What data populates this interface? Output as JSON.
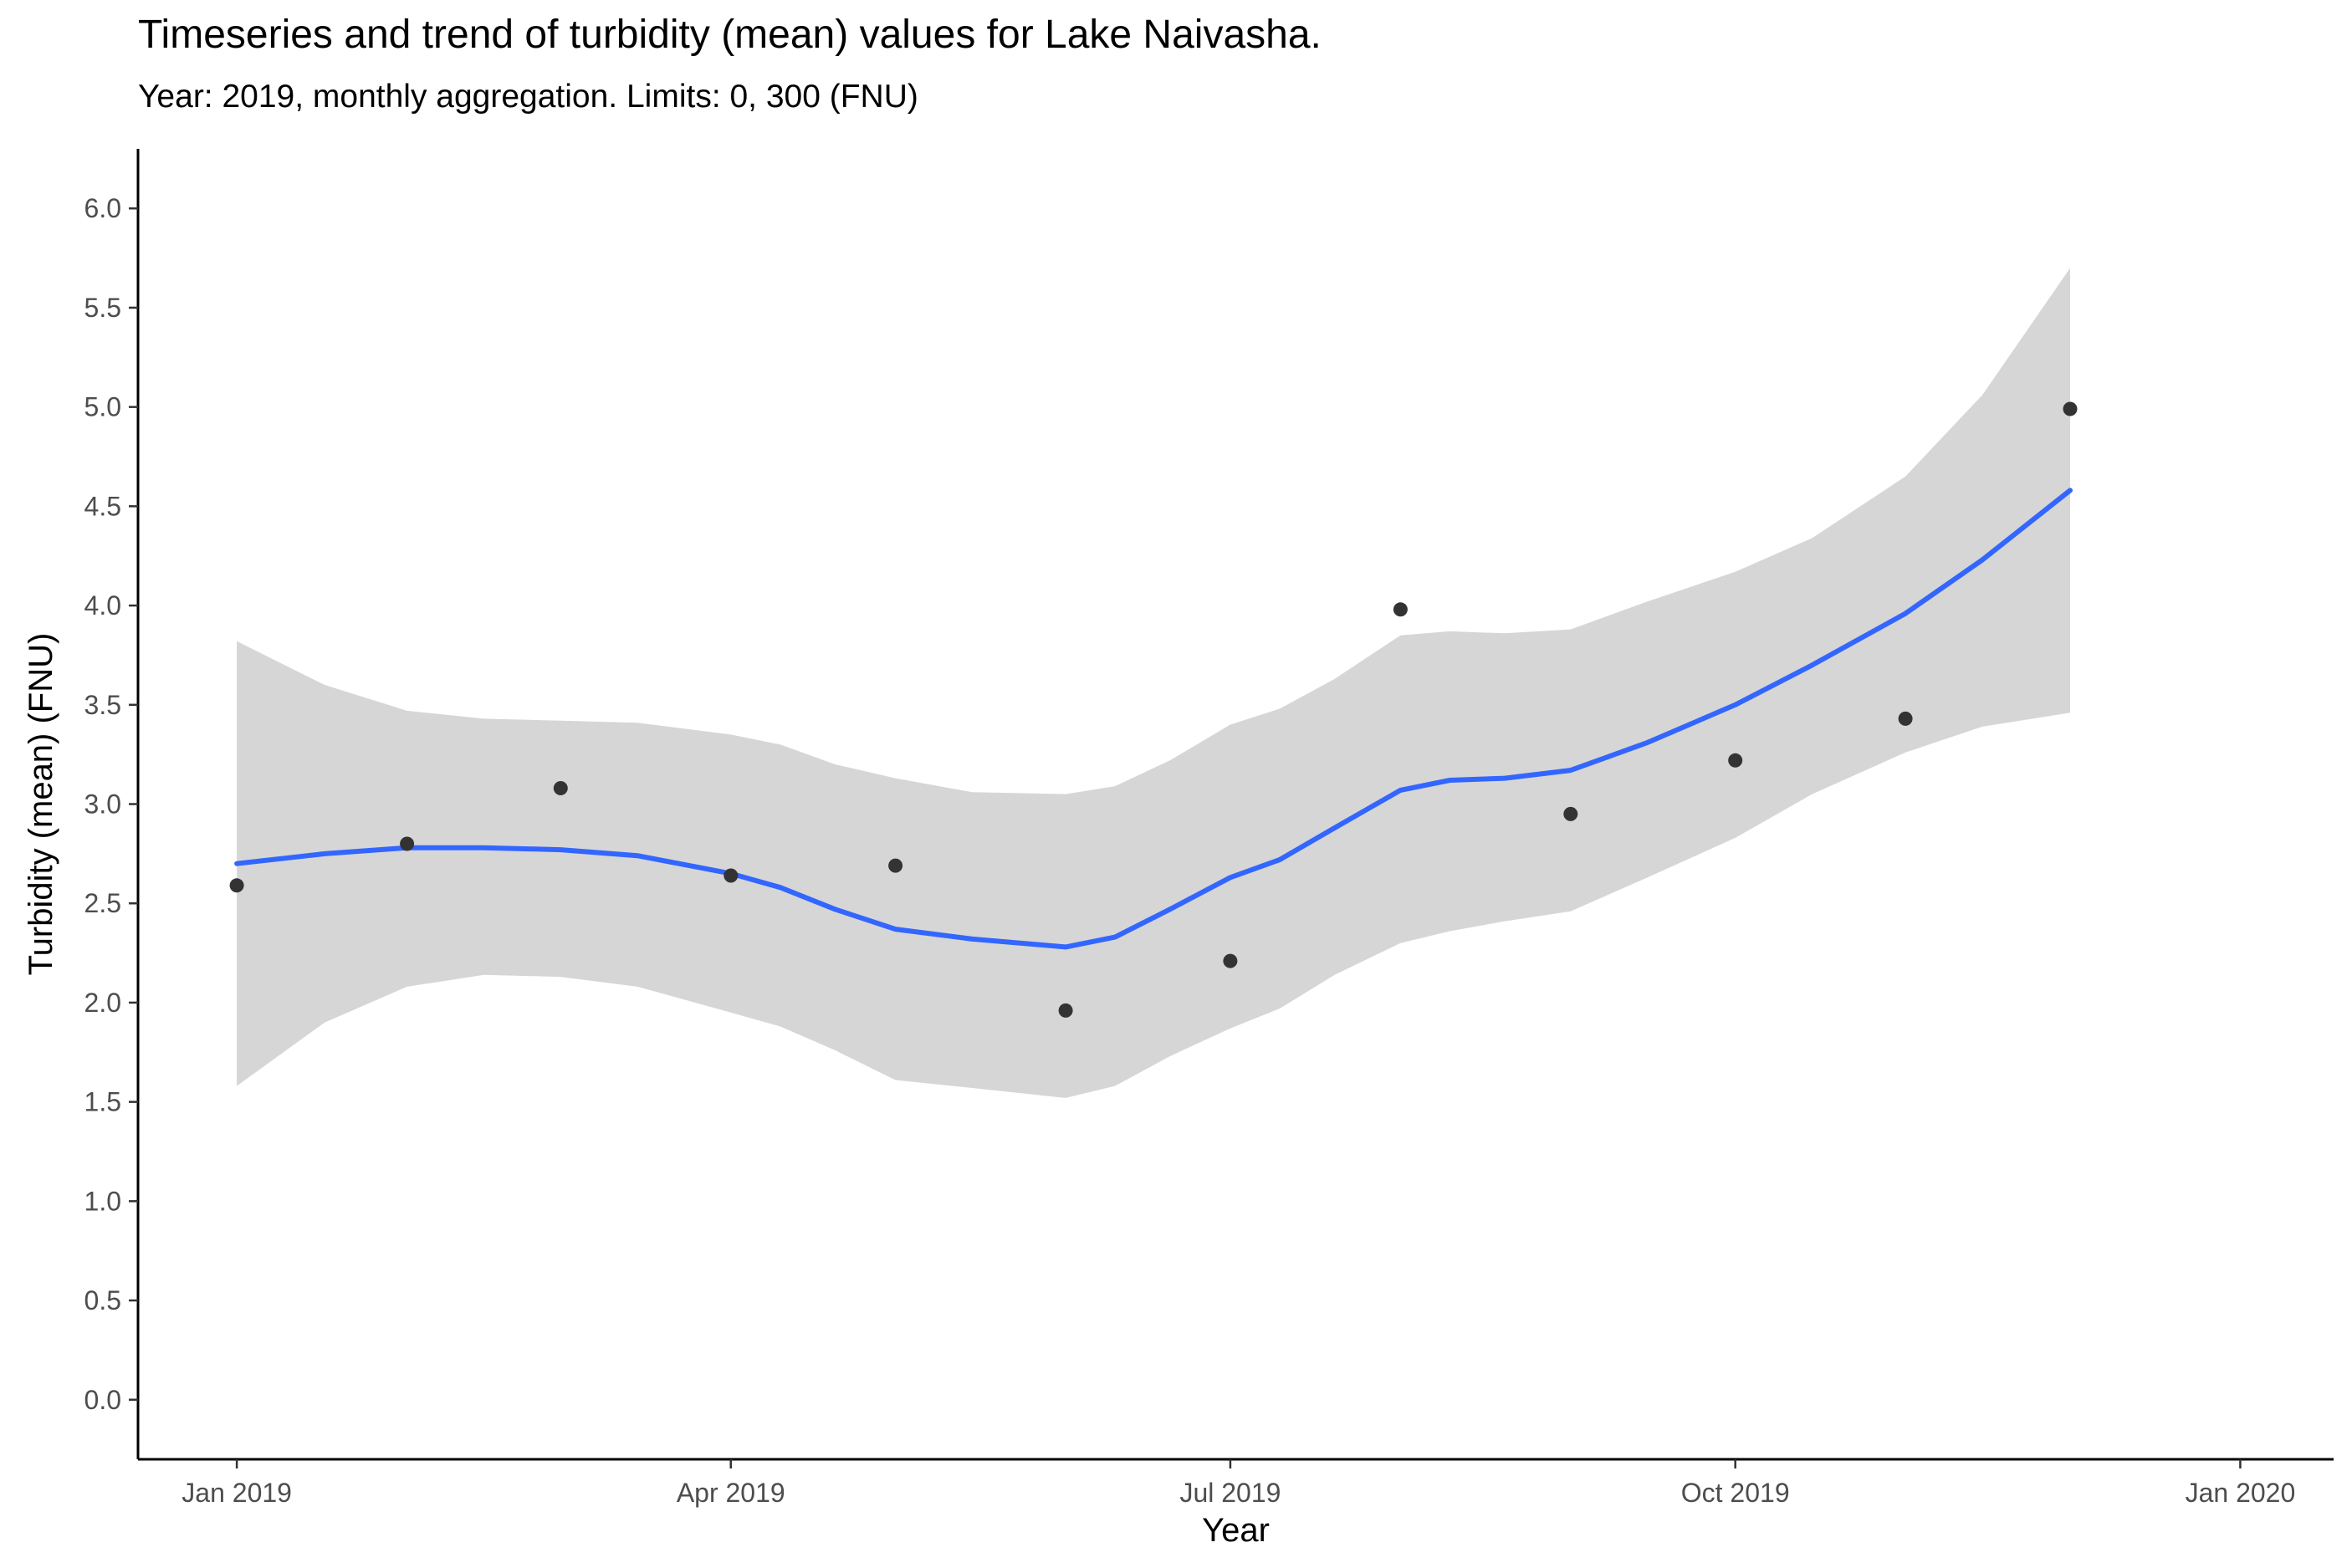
{
  "chart_data": {
    "type": "scatter",
    "title": "Timeseries and trend of turbidity (mean) values for Lake Naivasha.",
    "subtitle": "Year: 2019, monthly aggregation. Limits: 0, 300 (FNU)",
    "xlabel": "Year",
    "ylabel": "Turbidity (mean) (FNU)",
    "xlim": [
      "2018-12-14",
      "2020-01-18"
    ],
    "ylim": [
      -0.3,
      6.3
    ],
    "x_ticks": [
      {
        "date": "2019-01-01",
        "label": "Jan 2019"
      },
      {
        "date": "2019-04-01",
        "label": "Apr 2019"
      },
      {
        "date": "2019-07-01",
        "label": "Jul 2019"
      },
      {
        "date": "2019-10-01",
        "label": "Oct 2019"
      },
      {
        "date": "2020-01-01",
        "label": "Jan 2020"
      }
    ],
    "y_ticks": [
      {
        "value": 0.0,
        "label": "0.0"
      },
      {
        "value": 0.5,
        "label": "0.5"
      },
      {
        "value": 1.0,
        "label": "1.0"
      },
      {
        "value": 1.5,
        "label": "1.5"
      },
      {
        "value": 2.0,
        "label": "2.0"
      },
      {
        "value": 2.5,
        "label": "2.5"
      },
      {
        "value": 3.0,
        "label": "3.0"
      },
      {
        "value": 3.5,
        "label": "3.5"
      },
      {
        "value": 4.0,
        "label": "4.0"
      },
      {
        "value": 4.5,
        "label": "4.5"
      },
      {
        "value": 5.0,
        "label": "5.0"
      },
      {
        "value": 5.5,
        "label": "5.5"
      },
      {
        "value": 6.0,
        "label": "6.0"
      }
    ],
    "grid": false,
    "legend": "none",
    "series": [
      {
        "type": "scatter",
        "color": "#333333",
        "points": [
          {
            "x": "2019-01-01",
            "y": 2.59
          },
          {
            "x": "2019-02-01",
            "y": 2.8
          },
          {
            "x": "2019-03-01",
            "y": 3.08
          },
          {
            "x": "2019-04-01",
            "y": 2.64
          },
          {
            "x": "2019-05-01",
            "y": 2.69
          },
          {
            "x": "2019-06-01",
            "y": 1.96
          },
          {
            "x": "2019-07-01",
            "y": 2.21
          },
          {
            "x": "2019-08-01",
            "y": 3.98
          },
          {
            "x": "2019-09-01",
            "y": 2.95
          },
          {
            "x": "2019-10-01",
            "y": 3.22
          },
          {
            "x": "2019-11-01",
            "y": 3.43
          },
          {
            "x": "2019-12-01",
            "y": 4.99
          }
        ]
      },
      {
        "type": "smooth",
        "color": "#3366ff",
        "band_color": "#d6d6d6",
        "points": [
          {
            "x": "2019-01-01",
            "y": 2.7,
            "lower": 1.58,
            "upper": 3.82
          },
          {
            "x": "2019-01-17",
            "y": 2.75,
            "lower": 1.9,
            "upper": 3.6
          },
          {
            "x": "2019-02-01",
            "y": 2.78,
            "lower": 2.08,
            "upper": 3.47
          },
          {
            "x": "2019-02-15",
            "y": 2.78,
            "lower": 2.14,
            "upper": 3.43
          },
          {
            "x": "2019-03-01",
            "y": 2.77,
            "lower": 2.13,
            "upper": 3.42
          },
          {
            "x": "2019-03-15",
            "y": 2.74,
            "lower": 2.08,
            "upper": 3.41
          },
          {
            "x": "2019-04-01",
            "y": 2.65,
            "lower": 1.95,
            "upper": 3.35
          },
          {
            "x": "2019-04-10",
            "y": 2.58,
            "lower": 1.88,
            "upper": 3.3
          },
          {
            "x": "2019-04-20",
            "y": 2.47,
            "lower": 1.76,
            "upper": 3.2
          },
          {
            "x": "2019-05-01",
            "y": 2.37,
            "lower": 1.61,
            "upper": 3.13
          },
          {
            "x": "2019-05-15",
            "y": 2.32,
            "lower": 1.57,
            "upper": 3.06
          },
          {
            "x": "2019-06-01",
            "y": 2.28,
            "lower": 1.52,
            "upper": 3.05
          },
          {
            "x": "2019-06-10",
            "y": 2.33,
            "lower": 1.58,
            "upper": 3.09
          },
          {
            "x": "2019-06-20",
            "y": 2.47,
            "lower": 1.73,
            "upper": 3.22
          },
          {
            "x": "2019-07-01",
            "y": 2.63,
            "lower": 1.87,
            "upper": 3.4
          },
          {
            "x": "2019-07-10",
            "y": 2.72,
            "lower": 1.97,
            "upper": 3.48
          },
          {
            "x": "2019-07-20",
            "y": 2.88,
            "lower": 2.14,
            "upper": 3.63
          },
          {
            "x": "2019-08-01",
            "y": 3.07,
            "lower": 2.3,
            "upper": 3.85
          },
          {
            "x": "2019-08-10",
            "y": 3.12,
            "lower": 2.36,
            "upper": 3.87
          },
          {
            "x": "2019-08-20",
            "y": 3.13,
            "lower": 2.41,
            "upper": 3.86
          },
          {
            "x": "2019-09-01",
            "y": 3.17,
            "lower": 2.46,
            "upper": 3.88
          },
          {
            "x": "2019-09-15",
            "y": 3.31,
            "lower": 2.63,
            "upper": 4.02
          },
          {
            "x": "2019-10-01",
            "y": 3.5,
            "lower": 2.83,
            "upper": 4.17
          },
          {
            "x": "2019-10-15",
            "y": 3.7,
            "lower": 3.05,
            "upper": 4.34
          },
          {
            "x": "2019-11-01",
            "y": 3.96,
            "lower": 3.26,
            "upper": 4.65
          },
          {
            "x": "2019-11-15",
            "y": 4.23,
            "lower": 3.39,
            "upper": 5.06
          },
          {
            "x": "2019-12-01",
            "y": 4.58,
            "lower": 3.46,
            "upper": 5.7
          }
        ]
      }
    ]
  }
}
